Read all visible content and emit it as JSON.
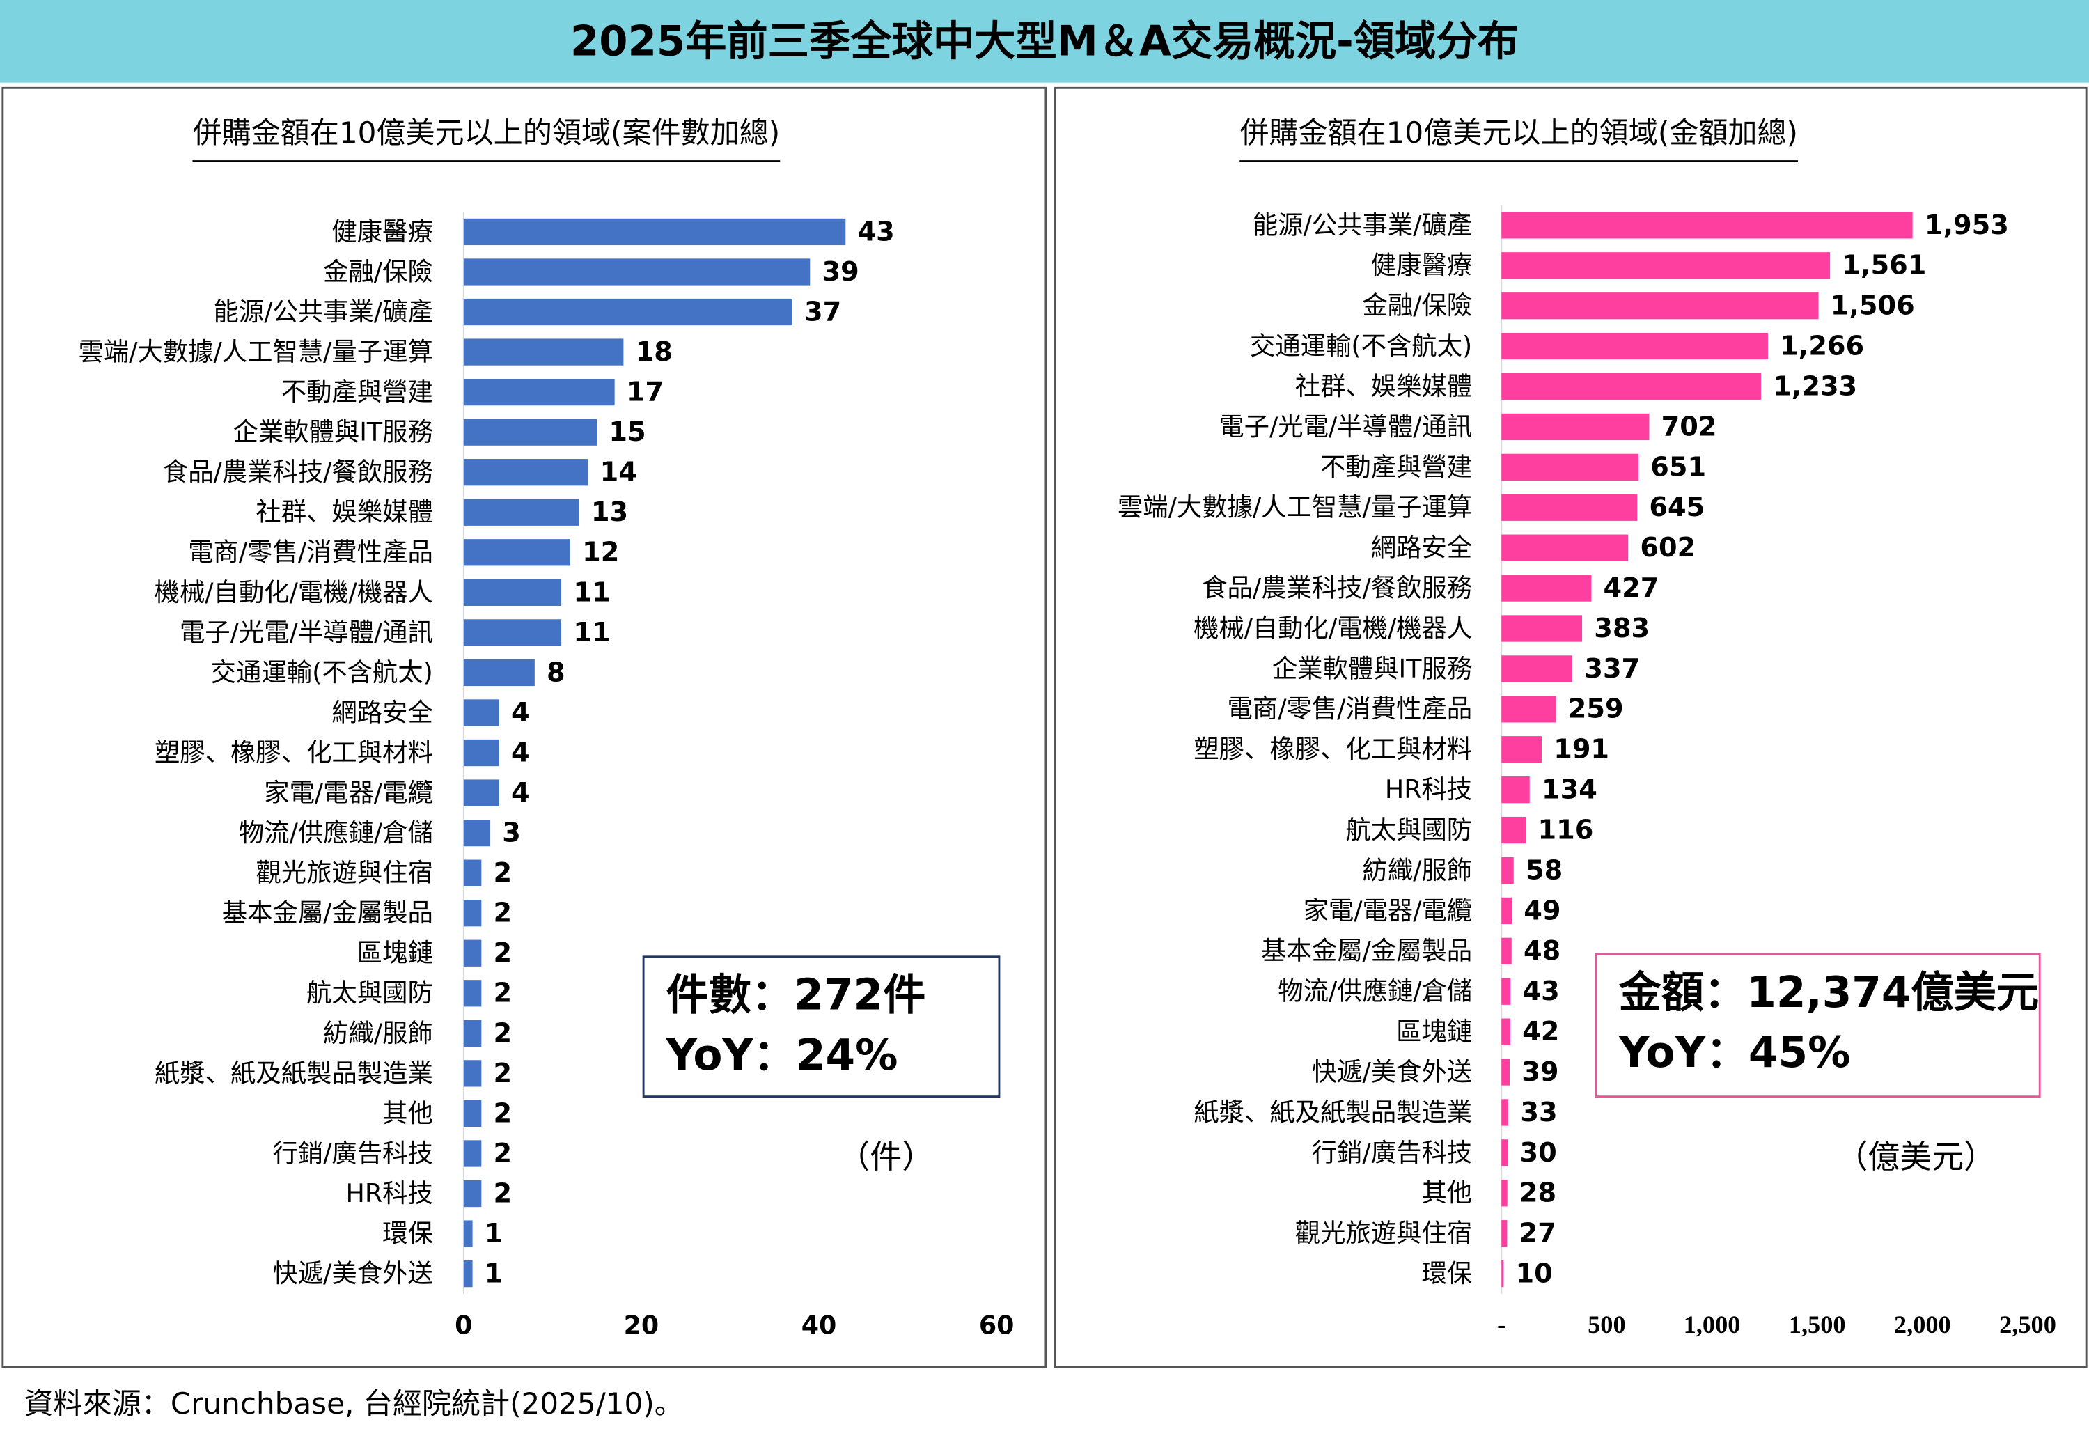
{
  "title": "2025年前三季全球中大型M＆A交易概況-領域分布",
  "chart_data": [
    {
      "type": "bar",
      "orientation": "horizontal",
      "subtitle": "併購金額在10億美元以上的領域(案件數加總)",
      "categories": [
        "健康醫療",
        "金融/保險",
        "能源/公共事業/礦產",
        "雲端/大數據/人工智慧/量子運算",
        "不動產與營建",
        "企業軟體與IT服務",
        "食品/農業科技/餐飲服務",
        "社群、娛樂媒體",
        "電商/零售/消費性產品",
        "機械/自動化/電機/機器人",
        "電子/光電/半導體/通訊",
        "交通運輸(不含航太)",
        "網路安全",
        "塑膠、橡膠、化工與材料",
        "家電/電器/電纜",
        "物流/供應鏈/倉儲",
        "觀光旅遊與住宿",
        "基本金屬/金屬製品",
        "區塊鏈",
        "航太與國防",
        "紡織/服飾",
        "紙漿、紙及紙製品製造業",
        "其他",
        "行銷/廣告科技",
        "HR科技",
        "環保",
        "快遞/美食外送"
      ],
      "values": [
        43,
        39,
        37,
        18,
        17,
        15,
        14,
        13,
        12,
        11,
        11,
        8,
        4,
        4,
        4,
        3,
        2,
        2,
        2,
        2,
        2,
        2,
        2,
        2,
        2,
        1,
        1
      ],
      "color": "#4472c4",
      "label_color": "#1f3864",
      "xlim": [
        0,
        60
      ],
      "xticks": [
        0,
        20,
        40,
        60
      ],
      "annotations": [
        "件數：272件",
        "YoY：24%"
      ],
      "unit": "（件）",
      "box_color": "#1f3864"
    },
    {
      "type": "bar",
      "orientation": "horizontal",
      "subtitle": "併購金額在10億美元以上的領域(金額加總)",
      "categories": [
        "能源/公共事業/礦產",
        "健康醫療",
        "金融/保險",
        "交通運輸(不含航太)",
        "社群、娛樂媒體",
        "電子/光電/半導體/通訊",
        "不動產與營建",
        "雲端/大數據/人工智慧/量子運算",
        "網路安全",
        "食品/農業科技/餐飲服務",
        "機械/自動化/電機/機器人",
        "企業軟體與IT服務",
        "電商/零售/消費性產品",
        "塑膠、橡膠、化工與材料",
        "HR科技",
        "航太與國防",
        "紡織/服飾",
        "家電/電器/電纜",
        "基本金屬/金屬製品",
        "物流/供應鏈/倉儲",
        "區塊鏈",
        "快遞/美食外送",
        "紙漿、紙及紙製品製造業",
        "行銷/廣告科技",
        "其他",
        "觀光旅遊與住宿",
        "環保"
      ],
      "values": [
        1953,
        1561,
        1506,
        1266,
        1233,
        702,
        651,
        645,
        602,
        427,
        383,
        337,
        259,
        191,
        134,
        116,
        58,
        49,
        48,
        43,
        42,
        39,
        33,
        30,
        28,
        27,
        10
      ],
      "value_labels": [
        "1,953",
        "1,561",
        "1,506",
        "1,266",
        "1,233",
        "702",
        "651",
        "645",
        "602",
        "427",
        "383",
        "337",
        "259",
        "191",
        "134",
        "116",
        "58",
        "49",
        "48",
        "43",
        "42",
        "39",
        "33",
        "30",
        "28",
        "27",
        "10"
      ],
      "color": "#ff3fa0",
      "label_color": "#c00000",
      "xlim": [
        0,
        2500
      ],
      "xticks": [
        {
          "value": 0,
          "label": "-"
        },
        500,
        {
          "value": 1000,
          "label": "1,000"
        },
        {
          "value": 1500,
          "label": "1,500"
        },
        {
          "value": 2000,
          "label": "2,000"
        },
        {
          "value": 2500,
          "label": "2,500"
        }
      ],
      "annotations": [
        "金額：12,374億美元",
        "YoY：45%"
      ],
      "unit": "（億美元）",
      "box_color": "#e8559a"
    }
  ],
  "source": "資料來源：Crunchbase, 台經院統計(2025/10)。"
}
